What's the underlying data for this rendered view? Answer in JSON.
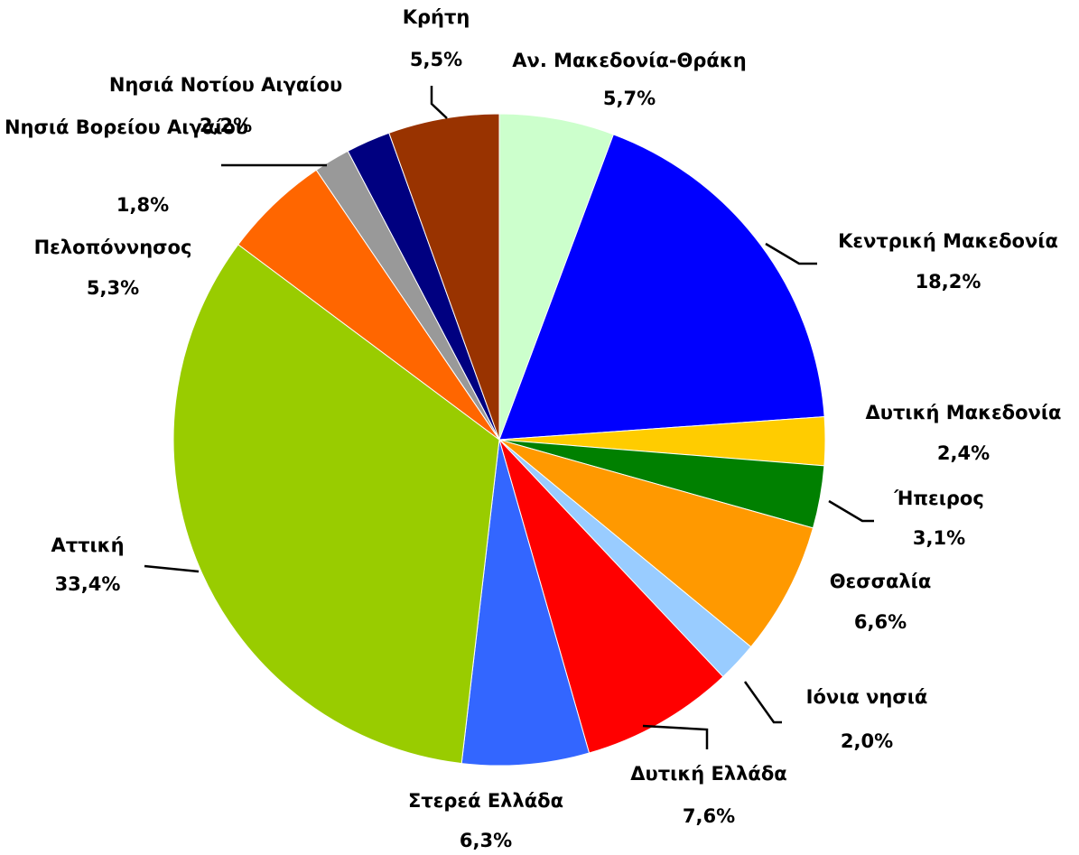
{
  "chart_data": {
    "type": "pie",
    "categories": [
      "Αν. Μακεδονία-Θράκη",
      "Κεντρική Μακεδονία",
      "Δυτική Μακεδονία",
      "Ήπειρος",
      "Θεσσαλία",
      "Ιόνια νησιά",
      "Δυτική Ελλάδα",
      "Στερεά Ελλάδα",
      "Αττική",
      "Πελοπόννησος",
      "Νησιά Βορείου Αιγαίου",
      "Νησιά Νοτίου Αιγαίου",
      "Κρήτη"
    ],
    "values": [
      5.7,
      18.2,
      2.4,
      3.1,
      6.6,
      2.0,
      7.6,
      6.3,
      33.4,
      5.3,
      1.8,
      2.2,
      5.5
    ],
    "value_labels": [
      "5,7%",
      "18,2%",
      "2,4%",
      "3,1%",
      "6,6%",
      "2,0%",
      "7,6%",
      "6,3%",
      "33,4%",
      "5,3%",
      "1,8%",
      "2,2%",
      "5,5%"
    ],
    "colors": [
      "#ccffcc",
      "#0000ff",
      "#ffcc00",
      "#008000",
      "#ff9900",
      "#99ccff",
      "#ff0000",
      "#3366ff",
      "#99cc00",
      "#ff6600",
      "#999999",
      "#000080",
      "#993300"
    ]
  }
}
